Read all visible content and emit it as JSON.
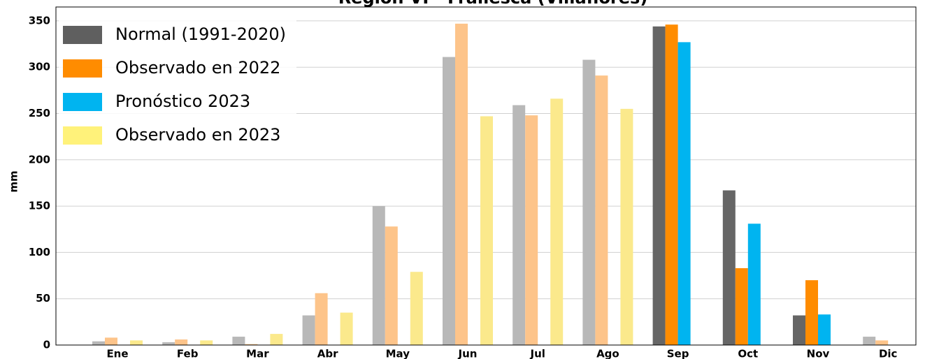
{
  "chart_data": {
    "type": "bar",
    "title": "Región VI - Frailesca (Villaflores)",
    "ylabel": "mm",
    "categories": [
      "Ene",
      "Feb",
      "Mar",
      "Abr",
      "May",
      "Jun",
      "Jul",
      "Ago",
      "Sep",
      "Oct",
      "Nov",
      "Dic"
    ],
    "series": [
      {
        "name": "Normal (1991-2020)",
        "color": "#5f5f5f",
        "values": [
          4,
          3,
          9,
          32,
          150,
          311,
          259,
          308,
          344,
          167,
          32,
          9
        ],
        "colors": [
          "#b8b8b8",
          "#b8b8b8",
          "#b8b8b8",
          "#b8b8b8",
          "#b8b8b8",
          "#b8b8b8",
          "#b8b8b8",
          "#b8b8b8",
          "#666666",
          "#666666",
          "#666666",
          "#b8b8b8"
        ]
      },
      {
        "name": "Observado en 2022",
        "color": "#ff8c00",
        "values": [
          8,
          6,
          1,
          56,
          128,
          347,
          248,
          291,
          346,
          83,
          70,
          5
        ],
        "colors": [
          "#fdc48a",
          "#fdc48a",
          "#fdc48a",
          "#fdc48a",
          "#fdc48a",
          "#fdc48a",
          "#fdc48a",
          "#fdc48a",
          "#ff8c00",
          "#ff8c00",
          "#ff8c00",
          "#fdc48a"
        ]
      },
      {
        "name": "Pronóstico 2023",
        "color": "#00b4f0",
        "values": [
          null,
          null,
          null,
          null,
          null,
          null,
          null,
          null,
          327,
          131,
          33,
          null
        ],
        "colors": [
          null,
          null,
          null,
          null,
          null,
          null,
          null,
          null,
          "#00b4f0",
          "#00b4f0",
          "#00b4f0",
          null
        ]
      },
      {
        "name": "Observado en 2023",
        "color": "#fff27a",
        "values": [
          5,
          5,
          12,
          35,
          79,
          247,
          266,
          255,
          null,
          null,
          null,
          null
        ],
        "colors": [
          "#fbe98c",
          "#fbe98c",
          "#fbe98c",
          "#fbe98c",
          "#fbe98c",
          "#fbe98c",
          "#fbe98c",
          "#fbe98c",
          null,
          null,
          null,
          null
        ]
      }
    ],
    "ylim": [
      0,
      365
    ],
    "yticks": [
      0,
      50,
      100,
      150,
      200,
      250,
      300,
      350
    ],
    "grid": true,
    "legend": "upper left"
  }
}
